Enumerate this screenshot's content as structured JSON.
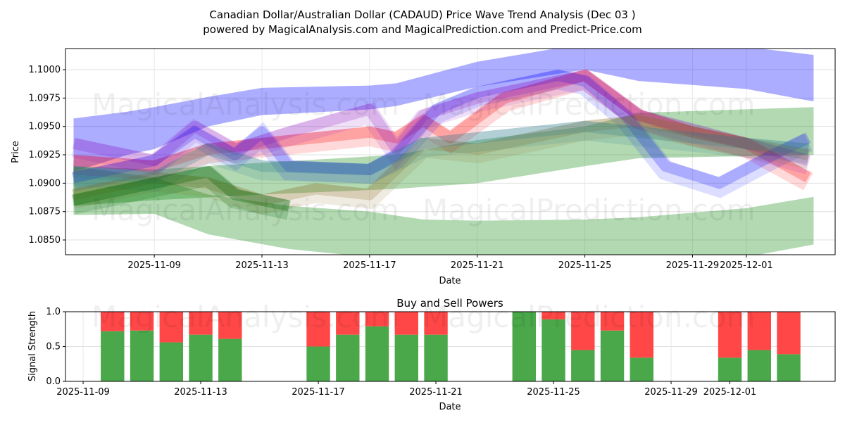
{
  "title_line1": "Canadian Dollar/Australian Dollar (CADAUD) Price Wave Trend Analysis (Dec 03 )",
  "title_line2": "powered by MagicalAnalysis.com and MagicalPrediction.com and Predict-Price.com",
  "watermarks": [
    "MagicalAnalysis.com",
    "MagicalPrediction.com"
  ],
  "colors": {
    "blue": "#0000ff",
    "red": "#ff0000",
    "green": "#008000",
    "buy": "#4aa84a",
    "sell": "#ff4747"
  },
  "chart_data": [
    {
      "type": "area",
      "title": "",
      "xlabel": "Date",
      "ylabel": "Price",
      "x_origin_date": "2025-11-09",
      "xlim_days": [
        -3.3,
        25.3
      ],
      "ylim": [
        1.0837,
        1.10186
      ],
      "yticks": [
        1.085,
        1.0875,
        1.09,
        1.0925,
        1.095,
        1.0975,
        1.1
      ],
      "ytick_labels": [
        "1.0850",
        "1.0875",
        "1.0900",
        "1.0925",
        "1.0950",
        "1.0975",
        "1.1000"
      ],
      "xticks_days": [
        0,
        4,
        8,
        12,
        16,
        20,
        22
      ],
      "xtick_labels": [
        "2025-11-09",
        "2025-11-13",
        "2025-11-17",
        "2025-11-21",
        "2025-11-25",
        "2025-11-29",
        "2025-12-01"
      ],
      "grid": true,
      "bands": [
        {
          "name": "upper-blue-band",
          "color": "#0000ff",
          "opacity": 0.32,
          "points": [
            [
              -3,
              1.091,
              1.0957
            ],
            [
              -1,
              1.0925,
              1.0963
            ],
            [
              0,
              1.093,
              1.0967
            ],
            [
              2,
              1.095,
              1.0976
            ],
            [
              4,
              1.096,
              1.0984
            ],
            [
              8,
              1.0965,
              1.0986
            ],
            [
              9,
              1.0968,
              1.0988
            ],
            [
              12,
              1.0985,
              1.1007
            ],
            [
              16,
              1.1,
              1.1023
            ],
            [
              18,
              1.099,
              1.1025
            ],
            [
              22,
              1.0983,
              1.102
            ],
            [
              24.5,
              1.0972,
              1.1013
            ]
          ]
        },
        {
          "name": "lower-green-band",
          "color": "#008000",
          "opacity": 0.3,
          "points": [
            [
              -3,
              1.0872,
              1.0915
            ],
            [
              0,
              1.0873,
              1.0905
            ],
            [
              2,
              1.0855,
              1.089
            ],
            [
              5,
              1.0842,
              1.088
            ],
            [
              8,
              1.0835,
              1.0875
            ],
            [
              10,
              1.083,
              1.0868
            ],
            [
              12,
              1.083,
              1.0867
            ],
            [
              16,
              1.083,
              1.0868
            ],
            [
              18,
              1.083,
              1.087
            ],
            [
              22,
              1.0835,
              1.0878
            ],
            [
              24.5,
              1.0846,
              1.0888
            ]
          ]
        },
        {
          "name": "middle-green-band",
          "color": "#008000",
          "opacity": 0.3,
          "points": [
            [
              -3,
              1.088,
              1.0915
            ],
            [
              0,
              1.0885,
              1.0912
            ],
            [
              4,
              1.089,
              1.0918
            ],
            [
              9,
              1.0895,
              1.0925
            ],
            [
              12,
              1.09,
              1.0938
            ],
            [
              16,
              1.0915,
              1.095
            ],
            [
              18,
              1.0922,
              1.0962
            ],
            [
              24.5,
              1.0925,
              1.0967
            ]
          ]
        }
      ],
      "waves": [
        {
          "name": "red-wave",
          "color": "#ff0000",
          "opacity": 0.25,
          "points": [
            [
              -3,
              1.092
            ],
            [
              0,
              1.0915
            ],
            [
              2,
              1.093
            ],
            [
              4,
              1.0935
            ],
            [
              6,
              1.094
            ],
            [
              8,
              1.0945
            ],
            [
              9,
              1.094
            ],
            [
              10,
              1.0955
            ],
            [
              11,
              1.094
            ],
            [
              13,
              1.0975
            ],
            [
              16,
              1.0995
            ],
            [
              18,
              1.096
            ],
            [
              20,
              1.0945
            ],
            [
              22,
              1.0935
            ],
            [
              24.3,
              1.0905
            ]
          ]
        },
        {
          "name": "blue-wave",
          "color": "#0000ff",
          "opacity": 0.22,
          "points": [
            [
              -3,
              1.0905
            ],
            [
              -1,
              1.0915
            ],
            [
              0,
              1.092
            ],
            [
              1.5,
              1.0945
            ],
            [
              3,
              1.0925
            ],
            [
              4,
              1.0945
            ],
            [
              5,
              1.0915
            ],
            [
              8,
              1.0912
            ],
            [
              9,
              1.0925
            ],
            [
              10.5,
              1.0965
            ],
            [
              12,
              1.098
            ],
            [
              15,
              1.0995
            ],
            [
              16,
              1.099
            ],
            [
              17.5,
              1.096
            ],
            [
              19,
              1.0915
            ],
            [
              21,
              1.09
            ],
            [
              23,
              1.0925
            ],
            [
              24.3,
              1.094
            ]
          ]
        },
        {
          "name": "purple-wave",
          "color": "#8000c0",
          "opacity": 0.2,
          "points": [
            [
              -3,
              1.0935
            ],
            [
              0,
              1.092
            ],
            [
              1.5,
              1.095
            ],
            [
              3,
              1.093
            ],
            [
              5,
              1.0945
            ],
            [
              8,
              1.0965
            ],
            [
              9,
              1.093
            ],
            [
              10,
              1.096
            ],
            [
              12,
              1.0975
            ],
            [
              16,
              1.0995
            ],
            [
              18,
              1.096
            ],
            [
              22,
              1.0935
            ],
            [
              24.3,
              1.092
            ]
          ]
        },
        {
          "name": "olive-wave",
          "color": "#8a6a20",
          "opacity": 0.22,
          "points": [
            [
              -3,
              1.089
            ],
            [
              0,
              1.0905
            ],
            [
              2,
              1.09
            ],
            [
              4,
              1.0885
            ],
            [
              6,
              1.0895
            ],
            [
              8,
              1.089
            ],
            [
              10,
              1.0935
            ],
            [
              12,
              1.093
            ],
            [
              14,
              1.094
            ],
            [
              16,
              1.095
            ],
            [
              18,
              1.0955
            ],
            [
              22,
              1.0935
            ],
            [
              24.3,
              1.0925
            ]
          ]
        },
        {
          "name": "teal-wave",
          "color": "#2a7a8a",
          "opacity": 0.25,
          "points": [
            [
              -3,
              1.091
            ],
            [
              0,
              1.0905
            ],
            [
              2,
              1.093
            ],
            [
              4,
              1.0915
            ],
            [
              8,
              1.0912
            ],
            [
              10,
              1.0935
            ],
            [
              14,
              1.0945
            ],
            [
              16,
              1.095
            ],
            [
              18,
              1.0945
            ],
            [
              22,
              1.0935
            ],
            [
              24.3,
              1.093
            ]
          ]
        },
        {
          "name": "dark-green-wave",
          "color": "#006000",
          "opacity": 0.3,
          "points": [
            [
              -3,
              1.0885
            ],
            [
              0,
              1.09
            ],
            [
              2,
              1.091
            ],
            [
              3,
              1.089
            ],
            [
              5,
              1.088
            ]
          ]
        }
      ]
    },
    {
      "type": "bar",
      "title": "Buy and Sell Powers",
      "xlabel": "Date",
      "ylabel": "Signal Strength",
      "x_origin_date": "2025-11-09",
      "xlim_days": [
        -0.6,
        25.58
      ],
      "ylim": [
        0,
        1
      ],
      "yticks": [
        0,
        0.5,
        1
      ],
      "ytick_labels": [
        "0.0",
        "0.5",
        "1.0"
      ],
      "xticks_days": [
        0,
        4,
        8,
        12,
        16,
        20,
        22
      ],
      "xtick_labels": [
        "2025-11-09",
        "2025-11-13",
        "2025-11-17",
        "2025-11-21",
        "2025-11-25",
        "2025-11-29",
        "2025-12-01"
      ],
      "categories": [
        "2025-11-10",
        "2025-11-11",
        "2025-11-12",
        "2025-11-13",
        "2025-11-14",
        "2025-11-17",
        "2025-11-18",
        "2025-11-19",
        "2025-11-20",
        "2025-11-21",
        "2025-11-24",
        "2025-11-25",
        "2025-11-26",
        "2025-11-27",
        "2025-11-28",
        "2025-12-01",
        "2025-12-02",
        "2025-12-03"
      ],
      "days": [
        1,
        2,
        3,
        4,
        5,
        8,
        9,
        10,
        11,
        12,
        15,
        16,
        17,
        18,
        19,
        22,
        23,
        24
      ],
      "series": [
        {
          "name": "Buy",
          "color": "#4aa84a",
          "values": [
            0.72,
            0.73,
            0.56,
            0.67,
            0.61,
            0.5,
            0.67,
            0.79,
            0.67,
            0.67,
            1.0,
            0.89,
            0.45,
            0.73,
            0.34,
            0.34,
            0.45,
            0.39
          ]
        },
        {
          "name": "Sell",
          "color": "#ff4747",
          "values": [
            0.28,
            0.27,
            0.44,
            0.33,
            0.39,
            0.5,
            0.33,
            0.21,
            0.33,
            0.33,
            0.0,
            0.11,
            0.55,
            0.27,
            0.66,
            0.66,
            0.55,
            0.61
          ]
        }
      ]
    }
  ]
}
